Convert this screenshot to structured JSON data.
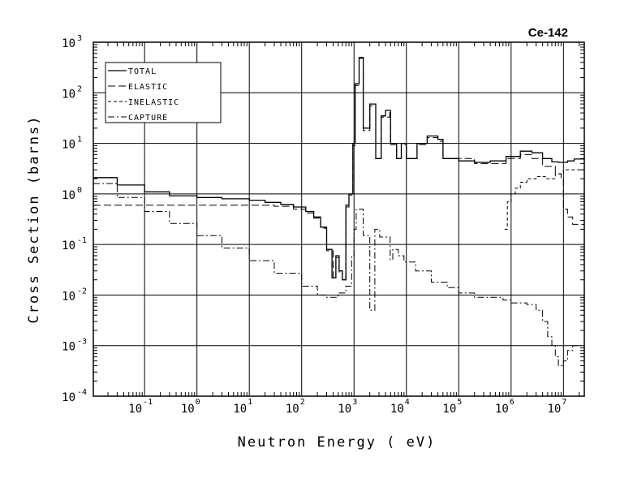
{
  "chart_data": {
    "type": "line",
    "title": "Ce-142",
    "xlabel": "Neutron Energy ( eV)",
    "ylabel": "Cross Section (barns)",
    "x_scale": "log",
    "y_scale": "log",
    "xlim": [
      0.0105,
      25000000
    ],
    "ylim": [
      0.0001,
      1000
    ],
    "grid": true,
    "legend_position": "top-left",
    "x_ticks": [
      {
        "base": "10",
        "exp": "-1",
        "value": 0.1
      },
      {
        "base": "10",
        "exp": "0",
        "value": 1
      },
      {
        "base": "10",
        "exp": "1",
        "value": 10
      },
      {
        "base": "10",
        "exp": "2",
        "value": 100
      },
      {
        "base": "10",
        "exp": "3",
        "value": 1000
      },
      {
        "base": "10",
        "exp": "4",
        "value": 10000
      },
      {
        "base": "10",
        "exp": "5",
        "value": 100000
      },
      {
        "base": "10",
        "exp": "6",
        "value": 1000000
      },
      {
        "base": "10",
        "exp": "7",
        "value": 10000000
      }
    ],
    "y_ticks": [
      {
        "base": "10",
        "exp": "3",
        "value": 1000
      },
      {
        "base": "10",
        "exp": "2",
        "value": 100
      },
      {
        "base": "10",
        "exp": "1",
        "value": 10
      },
      {
        "base": "10",
        "exp": "0",
        "value": 1
      },
      {
        "base": "10",
        "exp": "-1",
        "value": 0.1
      },
      {
        "base": "10",
        "exp": "-2",
        "value": 0.01
      },
      {
        "base": "10",
        "exp": "-3",
        "value": 0.001
      },
      {
        "base": "10",
        "exp": "-4",
        "value": 0.0001
      }
    ],
    "series": [
      {
        "name": "TOTAL",
        "dash": "",
        "stroke_width": 1.3,
        "points": [
          [
            0.0105,
            2.1
          ],
          [
            0.03,
            1.5
          ],
          [
            0.1,
            1.1
          ],
          [
            0.3,
            0.92
          ],
          [
            1,
            0.85
          ],
          [
            3,
            0.8
          ],
          [
            10,
            0.75
          ],
          [
            20,
            0.68
          ],
          [
            40,
            0.62
          ],
          [
            70,
            0.55
          ],
          [
            120,
            0.45
          ],
          [
            170,
            0.35
          ],
          [
            230,
            0.22
          ],
          [
            300,
            0.08
          ],
          [
            380,
            0.022
          ],
          [
            450,
            0.06
          ],
          [
            520,
            0.03
          ],
          [
            600,
            0.02
          ],
          [
            700,
            0.6
          ],
          [
            800,
            1.0
          ],
          [
            950,
            10
          ],
          [
            1050,
            150
          ],
          [
            1150,
            150
          ],
          [
            1250,
            500
          ],
          [
            1450,
            500
          ],
          [
            1500,
            20
          ],
          [
            1900,
            20
          ],
          [
            2000,
            60
          ],
          [
            2400,
            60
          ],
          [
            2600,
            5
          ],
          [
            3200,
            5
          ],
          [
            3300,
            35
          ],
          [
            4000,
            45
          ],
          [
            4800,
            45
          ],
          [
            5000,
            10
          ],
          [
            6000,
            10
          ],
          [
            6500,
            5
          ],
          [
            7500,
            5
          ],
          [
            8000,
            10
          ],
          [
            9500,
            10
          ],
          [
            10000,
            5
          ],
          [
            15000,
            5
          ],
          [
            16000,
            10
          ],
          [
            22000,
            10
          ],
          [
            25000,
            14
          ],
          [
            40000,
            12
          ],
          [
            50000,
            5
          ],
          [
            100000,
            4.5
          ],
          [
            200000,
            4.2
          ],
          [
            400000,
            4.5
          ],
          [
            800000,
            5.5
          ],
          [
            1500000,
            7
          ],
          [
            2500000,
            6.5
          ],
          [
            4000000,
            5
          ],
          [
            6000000,
            4.3
          ],
          [
            8000000,
            4.2
          ],
          [
            12000000,
            4.5
          ],
          [
            16000000,
            4.9
          ],
          [
            25000000,
            5.1
          ]
        ]
      },
      {
        "name": "ELASTIC",
        "dash": "9,4",
        "stroke_width": 1,
        "points": [
          [
            0.0105,
            0.6
          ],
          [
            0.1,
            0.6
          ],
          [
            1,
            0.6
          ],
          [
            10,
            0.6
          ],
          [
            30,
            0.57
          ],
          [
            70,
            0.5
          ],
          [
            120,
            0.42
          ],
          [
            170,
            0.33
          ],
          [
            230,
            0.21
          ],
          [
            300,
            0.075
          ],
          [
            400,
            0.021
          ],
          [
            450,
            0.055
          ],
          [
            520,
            0.028
          ],
          [
            600,
            0.02
          ],
          [
            700,
            0.55
          ],
          [
            800,
            0.95
          ],
          [
            950,
            9
          ],
          [
            1050,
            140
          ],
          [
            1150,
            140
          ],
          [
            1250,
            480
          ],
          [
            1450,
            480
          ],
          [
            1500,
            18
          ],
          [
            1900,
            18
          ],
          [
            2000,
            55
          ],
          [
            2400,
            55
          ],
          [
            2600,
            5
          ],
          [
            3200,
            5
          ],
          [
            3300,
            33
          ],
          [
            4800,
            43
          ],
          [
            5000,
            9.5
          ],
          [
            6500,
            5
          ],
          [
            8000,
            9.5
          ],
          [
            10000,
            5
          ],
          [
            16000,
            9.5
          ],
          [
            25000,
            13
          ],
          [
            40000,
            11
          ],
          [
            50000,
            5
          ],
          [
            200000,
            4
          ],
          [
            800000,
            5
          ],
          [
            1500000,
            6
          ],
          [
            2500000,
            5
          ],
          [
            4000000,
            3.5
          ],
          [
            7000000,
            2.5
          ],
          [
            9000000,
            2
          ],
          [
            10000000,
            0.5
          ],
          [
            12000000,
            0.35
          ],
          [
            15000000,
            0.25
          ],
          [
            25000000,
            0.2
          ]
        ]
      },
      {
        "name": "INELASTIC",
        "dash": "4,3",
        "stroke_width": 1,
        "points": [
          [
            750000,
            0.2
          ],
          [
            850000,
            0.2
          ],
          [
            850000,
            0.7
          ],
          [
            1000000,
            0.7
          ],
          [
            1000000,
            1.0
          ],
          [
            1200000,
            1.0
          ],
          [
            1200000,
            1.3
          ],
          [
            1500000,
            1.3
          ],
          [
            1500000,
            1.7
          ],
          [
            2000000,
            1.7
          ],
          [
            2000000,
            2.0
          ],
          [
            3000000,
            2.0
          ],
          [
            3000000,
            2.2
          ],
          [
            4500000,
            2.2
          ],
          [
            4500000,
            2.0
          ],
          [
            7000000,
            2.0
          ],
          [
            7000000,
            2.5
          ],
          [
            10000000,
            2.5
          ],
          [
            10000000,
            3.0
          ],
          [
            25000000,
            3.0
          ]
        ]
      },
      {
        "name": "CAPTURE",
        "dash": "8,3,2,3",
        "stroke_width": 1,
        "points": [
          [
            0.0105,
            1.6
          ],
          [
            0.03,
            0.85
          ],
          [
            0.1,
            0.45
          ],
          [
            0.3,
            0.26
          ],
          [
            1,
            0.15
          ],
          [
            3,
            0.085
          ],
          [
            10,
            0.048
          ],
          [
            30,
            0.027
          ],
          [
            100,
            0.015
          ],
          [
            200,
            0.01
          ],
          [
            300,
            0.009
          ],
          [
            500,
            0.011
          ],
          [
            700,
            0.015
          ],
          [
            900,
            0.06
          ],
          [
            1000,
            0.2
          ],
          [
            1100,
            0.5
          ],
          [
            1400,
            0.5
          ],
          [
            1500,
            0.15
          ],
          [
            1900,
            0.15
          ],
          [
            2000,
            0.005
          ],
          [
            2400,
            0.005
          ],
          [
            2500,
            0.2
          ],
          [
            3000,
            0.2
          ],
          [
            3100,
            0.14
          ],
          [
            4800,
            0.14
          ],
          [
            4900,
            0.05
          ],
          [
            5500,
            0.08
          ],
          [
            7000,
            0.06
          ],
          [
            9000,
            0.045
          ],
          [
            15000,
            0.03
          ],
          [
            30000,
            0.018
          ],
          [
            60000,
            0.014
          ],
          [
            100000,
            0.011
          ],
          [
            200000,
            0.009
          ],
          [
            400000,
            0.009
          ],
          [
            700000,
            0.008
          ],
          [
            1000000,
            0.007
          ],
          [
            2000000,
            0.0065
          ],
          [
            3000000,
            0.005
          ],
          [
            4000000,
            0.003
          ],
          [
            5000000,
            0.0015
          ],
          [
            6000000,
            0.001
          ],
          [
            7000000,
            0.0006
          ],
          [
            8000000,
            0.0004
          ],
          [
            10000000,
            0.0005
          ],
          [
            12000000,
            0.0008
          ],
          [
            15000000,
            0.001
          ],
          [
            25000000,
            0.001
          ]
        ]
      }
    ]
  }
}
